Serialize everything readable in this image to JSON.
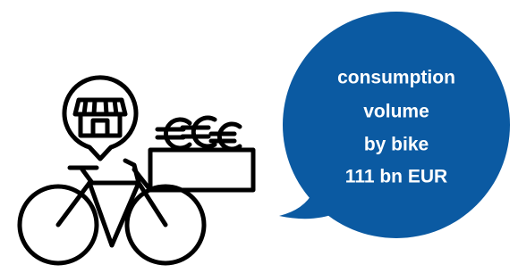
{
  "bubble": {
    "lines": [
      "consumption",
      "volume",
      "by bike",
      "111 bn EUR"
    ]
  }
}
